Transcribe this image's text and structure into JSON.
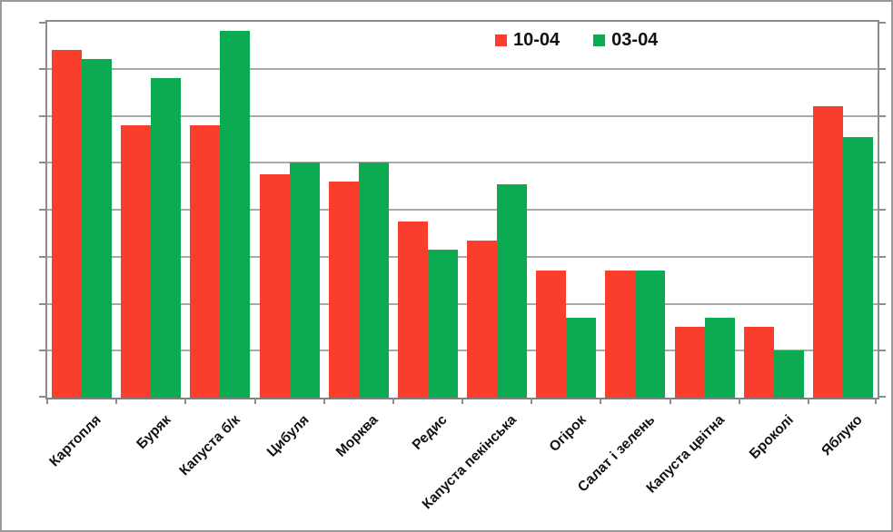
{
  "figure": {
    "background": "#ffffff",
    "border_color": "#98999b"
  },
  "legend": {
    "position": "top-center",
    "items": [
      {
        "label": "10-04",
        "swatch_color": "#fa3e2d"
      },
      {
        "label": "03-04",
        "swatch_color": "#0cab51"
      }
    ]
  },
  "chart_data": {
    "type": "bar",
    "title": "",
    "xlabel": "",
    "ylabel": "",
    "categories": [
      "Картопля",
      "Буряк",
      "Капуста б/к",
      "Цибуля",
      "Морква",
      "Редис",
      "Капуста пекінська",
      "Огірок",
      "Салат і зелень",
      "Капуста цвітна",
      "Броколі",
      "Яблуко"
    ],
    "series": [
      {
        "name": "10-04",
        "color": "#fa3e2d",
        "values": [
          7.4,
          5.8,
          5.8,
          4.75,
          4.6,
          3.75,
          3.35,
          2.7,
          2.7,
          1.5,
          1.5,
          6.2
        ]
      },
      {
        "name": "03-04",
        "color": "#0cab51",
        "values": [
          7.2,
          6.8,
          7.8,
          5.0,
          5.0,
          3.15,
          4.55,
          1.7,
          2.7,
          1.7,
          1.0,
          5.55
        ]
      }
    ],
    "ylim": [
      0,
      8
    ],
    "y_gridline_step": 1,
    "ytick_labels": [],
    "grid": true,
    "gridline_color": "#a9a9a9",
    "axis_color": "#8c8c8c",
    "xlabel_rotation_deg": 45,
    "legend_position": "top-center"
  }
}
